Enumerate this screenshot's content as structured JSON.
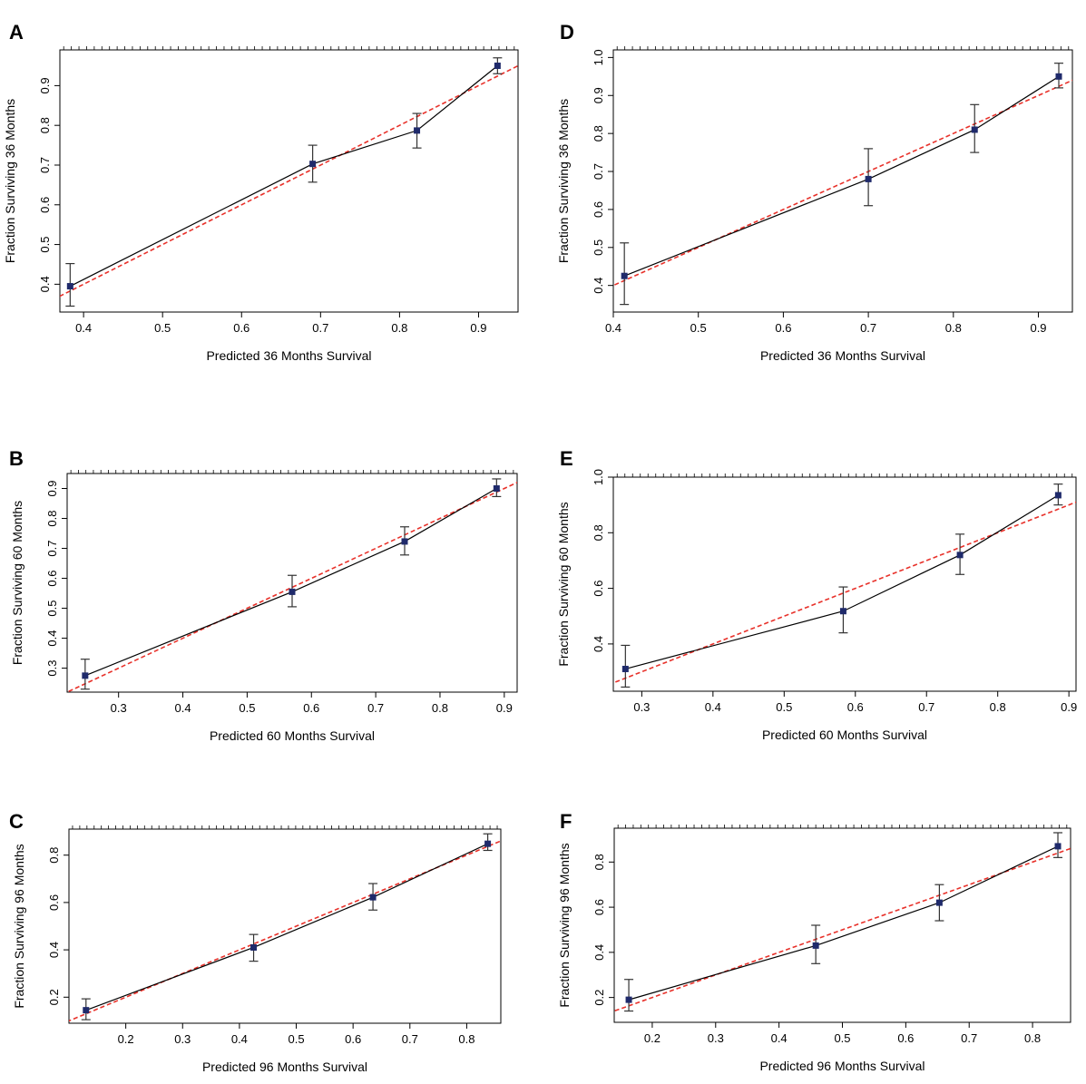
{
  "chart_data": [
    {
      "panel": "A",
      "type": "line",
      "xlabel": "Predicted  36 Months Survival",
      "ylabel": "Fraction Surviving 36 Months",
      "xlim": [
        0.37,
        0.95
      ],
      "ylim": [
        0.33,
        0.99
      ],
      "xticks": [
        0.4,
        0.5,
        0.6,
        0.7,
        0.8,
        0.9
      ],
      "xtick_labels": [
        "0.4",
        "0.5",
        "0.6",
        "0.7",
        "0.8",
        "0.9"
      ],
      "yticks": [
        0.4,
        0.5,
        0.6,
        0.7,
        0.8,
        0.9
      ],
      "ytick_labels": [
        "0.4",
        "0.5",
        "0.6",
        "0.7",
        "0.8",
        "0.9"
      ],
      "points": [
        {
          "x": 0.383,
          "y": 0.395,
          "lo": 0.345,
          "hi": 0.452
        },
        {
          "x": 0.69,
          "y": 0.703,
          "lo": 0.657,
          "hi": 0.75
        },
        {
          "x": 0.822,
          "y": 0.787,
          "lo": 0.743,
          "hi": 0.83
        },
        {
          "x": 0.924,
          "y": 0.95,
          "lo": 0.93,
          "hi": 0.97
        }
      ],
      "ideal_line": true
    },
    {
      "panel": "B",
      "type": "line",
      "xlabel": "Predicted  60 Months Survival",
      "ylabel": "Fraction Surviving 60 Months",
      "xlim": [
        0.22,
        0.92
      ],
      "ylim": [
        0.22,
        0.95
      ],
      "xticks": [
        0.3,
        0.4,
        0.5,
        0.6,
        0.7,
        0.8,
        0.9
      ],
      "xtick_labels": [
        "0.3",
        "0.4",
        "0.5",
        "0.6",
        "0.7",
        "0.8",
        "0.9"
      ],
      "yticks": [
        0.3,
        0.4,
        0.5,
        0.6,
        0.7,
        0.8,
        0.9
      ],
      "ytick_labels": [
        "0.3",
        "0.4",
        "0.5",
        "0.6",
        "0.7",
        "0.8",
        "0.9"
      ],
      "points": [
        {
          "x": 0.248,
          "y": 0.275,
          "lo": 0.23,
          "hi": 0.33
        },
        {
          "x": 0.57,
          "y": 0.555,
          "lo": 0.505,
          "hi": 0.61
        },
        {
          "x": 0.745,
          "y": 0.723,
          "lo": 0.678,
          "hi": 0.772
        },
        {
          "x": 0.888,
          "y": 0.9,
          "lo": 0.873,
          "hi": 0.932
        }
      ],
      "ideal_line": true
    },
    {
      "panel": "C",
      "type": "line",
      "xlabel": "Predicted  96 Months Survival",
      "ylabel": "Fraction Surviving 96 Months",
      "xlim": [
        0.1,
        0.86
      ],
      "ylim": [
        0.09,
        0.91
      ],
      "xticks": [
        0.2,
        0.3,
        0.4,
        0.5,
        0.6,
        0.7,
        0.8
      ],
      "xtick_labels": [
        "0.2",
        "0.3",
        "0.4",
        "0.5",
        "0.6",
        "0.7",
        "0.8"
      ],
      "yticks": [
        0.2,
        0.4,
        0.6,
        0.8
      ],
      "ytick_labels": [
        "0.2",
        "0.4",
        "0.6",
        "0.8"
      ],
      "points": [
        {
          "x": 0.13,
          "y": 0.145,
          "lo": 0.105,
          "hi": 0.193
        },
        {
          "x": 0.425,
          "y": 0.41,
          "lo": 0.352,
          "hi": 0.465
        },
        {
          "x": 0.635,
          "y": 0.622,
          "lo": 0.568,
          "hi": 0.68
        },
        {
          "x": 0.837,
          "y": 0.848,
          "lo": 0.82,
          "hi": 0.89
        }
      ],
      "ideal_line": true
    },
    {
      "panel": "D",
      "type": "line",
      "xlabel": "Predicted  36 Months Survival",
      "ylabel": "Fraction Surviving 36 Months",
      "xlim": [
        0.4,
        0.94
      ],
      "ylim": [
        0.33,
        1.02
      ],
      "xticks": [
        0.4,
        0.5,
        0.6,
        0.7,
        0.8,
        0.9
      ],
      "xtick_labels": [
        "0.4",
        "0.5",
        "0.6",
        "0.7",
        "0.8",
        "0.9"
      ],
      "yticks": [
        0.4,
        0.5,
        0.6,
        0.7,
        0.8,
        0.9,
        1.0
      ],
      "ytick_labels": [
        "0.4",
        "0.5",
        "0.6",
        "0.7",
        "0.8",
        "0.9",
        "1.0"
      ],
      "points": [
        {
          "x": 0.413,
          "y": 0.425,
          "lo": 0.35,
          "hi": 0.512
        },
        {
          "x": 0.7,
          "y": 0.68,
          "lo": 0.61,
          "hi": 0.76
        },
        {
          "x": 0.825,
          "y": 0.81,
          "lo": 0.75,
          "hi": 0.876
        },
        {
          "x": 0.924,
          "y": 0.95,
          "lo": 0.92,
          "hi": 0.985
        }
      ],
      "ideal_line": true
    },
    {
      "panel": "E",
      "type": "line",
      "xlabel": "Predicted  60 Months Survival",
      "ylabel": "Fraction Surviving 60 Months",
      "xlim": [
        0.26,
        0.91
      ],
      "ylim": [
        0.23,
        1.0
      ],
      "xticks": [
        0.3,
        0.4,
        0.5,
        0.6,
        0.7,
        0.8,
        0.9
      ],
      "xtick_labels": [
        "0.3",
        "0.4",
        "0.5",
        "0.6",
        "0.7",
        "0.8",
        "0.9"
      ],
      "yticks": [
        0.4,
        0.6,
        0.8,
        1.0
      ],
      "ytick_labels": [
        "0.4",
        "0.6",
        "0.8",
        "1.0"
      ],
      "points": [
        {
          "x": 0.277,
          "y": 0.31,
          "lo": 0.245,
          "hi": 0.395
        },
        {
          "x": 0.583,
          "y": 0.518,
          "lo": 0.44,
          "hi": 0.605
        },
        {
          "x": 0.747,
          "y": 0.72,
          "lo": 0.65,
          "hi": 0.795
        },
        {
          "x": 0.885,
          "y": 0.935,
          "lo": 0.9,
          "hi": 0.975
        }
      ],
      "ideal_line": true
    },
    {
      "panel": "F",
      "type": "line",
      "xlabel": "Predicted  96 Months Survival",
      "ylabel": "Fraction Surviving 96 Months",
      "xlim": [
        0.14,
        0.86
      ],
      "ylim": [
        0.09,
        0.95
      ],
      "xticks": [
        0.2,
        0.3,
        0.4,
        0.5,
        0.6,
        0.7,
        0.8
      ],
      "xtick_labels": [
        "0.2",
        "0.3",
        "0.4",
        "0.5",
        "0.6",
        "0.7",
        "0.8"
      ],
      "yticks": [
        0.2,
        0.4,
        0.6,
        0.8
      ],
      "ytick_labels": [
        "0.2",
        "0.4",
        "0.6",
        "0.8"
      ],
      "points": [
        {
          "x": 0.163,
          "y": 0.19,
          "lo": 0.14,
          "hi": 0.28
        },
        {
          "x": 0.458,
          "y": 0.43,
          "lo": 0.35,
          "hi": 0.52
        },
        {
          "x": 0.653,
          "y": 0.62,
          "lo": 0.54,
          "hi": 0.7
        },
        {
          "x": 0.84,
          "y": 0.87,
          "lo": 0.82,
          "hi": 0.93
        }
      ],
      "ideal_line": true
    }
  ],
  "colors": {
    "observed_line": "#000000",
    "point_fill": "#1f2a6b",
    "error_bar": "#333333",
    "ideal_line": "#e8312a",
    "frame": "#000000"
  }
}
